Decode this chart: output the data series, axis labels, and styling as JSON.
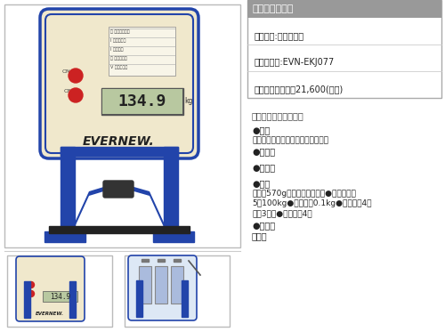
{
  "bg_color": "#f5f5f5",
  "title_bar_bg": "#999999",
  "title_bar_text": "デジタル握力計",
  "title_bar_text_color": "#ffffff",
  "brand_label": "ブランド:エバニュー",
  "code_label": "商品コード:EVN-EKJ077",
  "price_label": "標準小売価格：￥21,600(税抜)",
  "section_header": "メジャー・検尺ロープ",
  "bullet1_label": "●素材",
  "bullet1_text": "本体：ＡＢＳ樹脂、耐力部：アルミ",
  "bullet2_label": "●サイズ",
  "bullet3_label": "●カラー",
  "bullet4_label": "●仕様",
  "bullet4_text1": "自重：570g（乾電池を含む）●測定範囲：",
  "bullet4_text2": "5～100kg●最小単位0.1kg●電源：単4乾",
  "bullet4_text3": "電池3本付●液晶表示4桁",
  "bullet5_label": "●生産国",
  "bullet5_text": "日本製",
  "frame_color": "#2244aa",
  "cream_color": "#f0e8cc",
  "lcd_bg": "#b8c8a0",
  "main_img_border": "#bbbbbb",
  "thumb_border": "#bbbbbb",
  "right_box_border": "#aaaaaa",
  "font_size_title": 7.5,
  "font_size_body": 7,
  "font_size_small": 6.5
}
